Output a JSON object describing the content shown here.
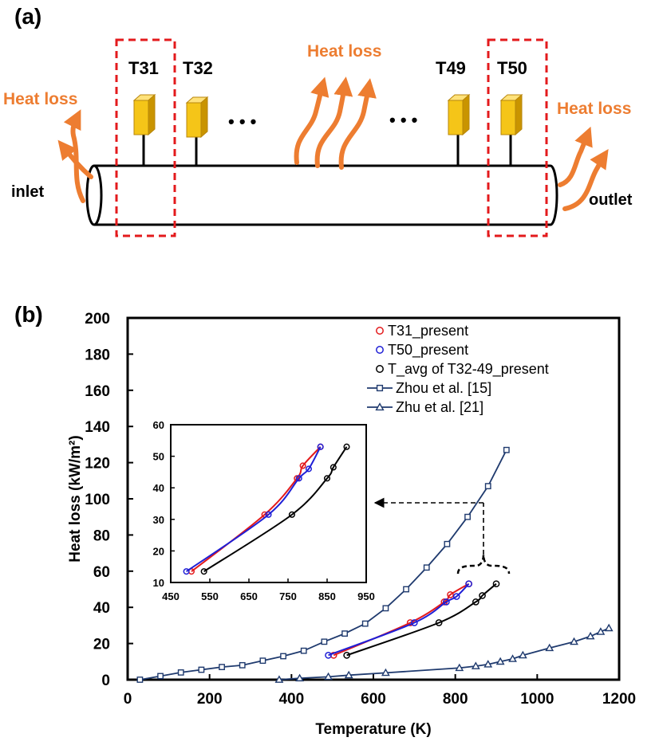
{
  "panel_a": {
    "label": "(a)",
    "sensors": [
      "T31",
      "T32",
      "T49",
      "T50"
    ],
    "heat_loss_labels": [
      "Heat loss",
      "Heat loss",
      "Heat loss"
    ],
    "inlet": "inlet",
    "outlet": "outlet",
    "ellipsis": "• • •",
    "colors": {
      "sensor": "#F5C518",
      "heat": "#ED7D31",
      "box": "#E31A1C"
    }
  },
  "panel_b": {
    "label": "(b)"
  },
  "chart_data": [
    {
      "type": "scatter",
      "title": "",
      "xlabel": "Temperature (K)",
      "ylabel": "Heat loss (kW/m²)",
      "xlim": [
        0,
        1200
      ],
      "ylim": [
        0,
        200
      ],
      "xticks": [
        0,
        200,
        400,
        600,
        800,
        1000,
        1200
      ],
      "yticks": [
        0,
        20,
        40,
        60,
        80,
        100,
        120,
        140,
        160,
        180,
        200
      ],
      "grid": false,
      "legend_position": "top-right",
      "series": [
        {
          "name": "T31_present",
          "color": "#E31A1C",
          "marker": "circle",
          "line": true,
          "x": [
            503,
            690,
            773,
            788,
            833
          ],
          "y": [
            13.5,
            31.5,
            43,
            47,
            53
          ]
        },
        {
          "name": "T50_present",
          "color": "#1F1FD6",
          "marker": "circle",
          "line": true,
          "x": [
            490,
            700,
            778,
            803,
            833
          ],
          "y": [
            13.5,
            31.5,
            43,
            46,
            53
          ]
        },
        {
          "name": "T_avg of T32-49_present",
          "color": "#000000",
          "marker": "circle",
          "line": true,
          "x": [
            535,
            760,
            850,
            866,
            900
          ],
          "y": [
            13.5,
            31.5,
            43,
            46.5,
            53
          ]
        },
        {
          "name": "Zhou et al. [15]",
          "color": "#1F3A6E",
          "marker": "square",
          "line": true,
          "x": [
            30,
            80,
            130,
            180,
            230,
            280,
            330,
            380,
            430,
            480,
            530,
            580,
            630,
            680,
            730,
            780,
            830,
            880,
            925
          ],
          "y": [
            0,
            2,
            4,
            5.5,
            7,
            8,
            10.5,
            13,
            16,
            21,
            25.5,
            31,
            39.5,
            50,
            62,
            75,
            90,
            107,
            127
          ]
        },
        {
          "name": "Zhu et al. [21]",
          "color": "#1F3A6E",
          "marker": "triangle",
          "line": true,
          "x": [
            370,
            420,
            490,
            540,
            630,
            810,
            850,
            880,
            910,
            940,
            965,
            1030,
            1090,
            1130,
            1155,
            1175
          ],
          "y": [
            0,
            0.8,
            1.6,
            2.5,
            3.8,
            6.5,
            7.5,
            8.5,
            10,
            11.5,
            13.5,
            17.5,
            21,
            24,
            26.5,
            28.5
          ]
        }
      ]
    },
    {
      "type": "line",
      "title": "",
      "xlabel": "",
      "ylabel": "",
      "xlim": [
        450,
        950
      ],
      "ylim": [
        10,
        60
      ],
      "xticks": [
        450,
        550,
        650,
        750,
        850,
        950
      ],
      "yticks": [
        10,
        20,
        30,
        40,
        50,
        60
      ],
      "series_refs": [
        "T31_present",
        "T50_present",
        "T_avg of T32-49_present"
      ]
    }
  ]
}
